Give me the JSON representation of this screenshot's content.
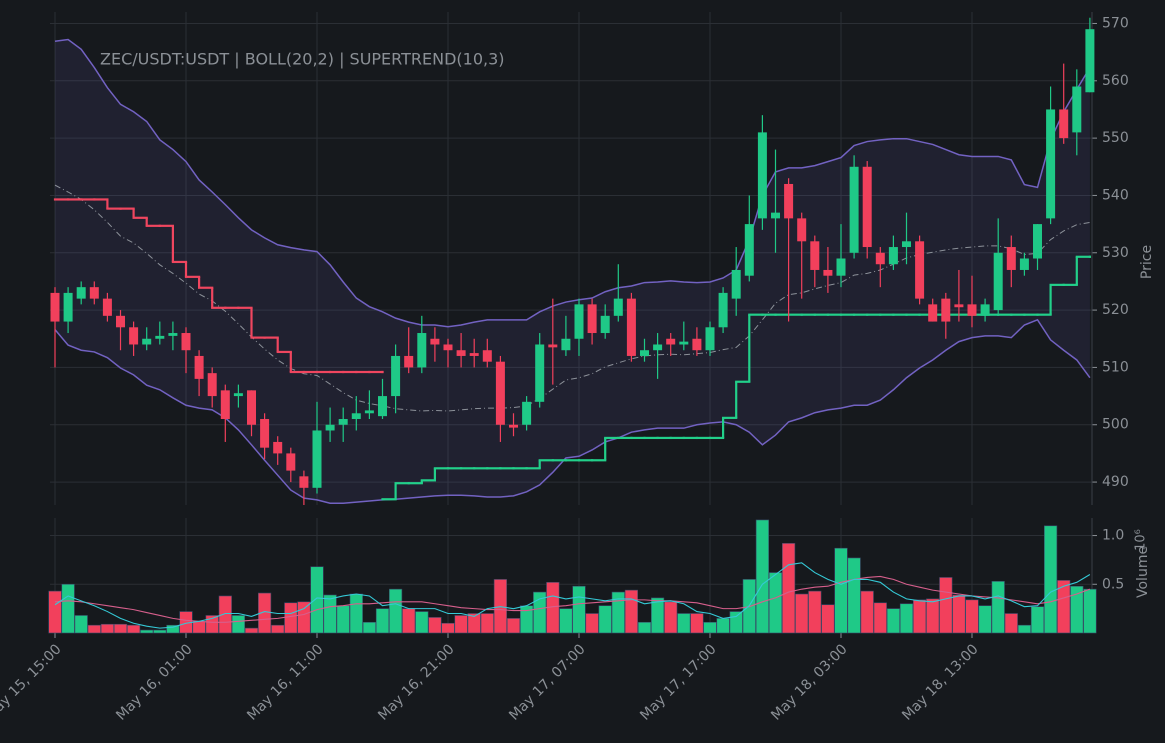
{
  "chart_data": {
    "type": "candlestick",
    "title": "ZEC/USDT:USDT | BOLL(20,2) | SUPERTREND(10,3)",
    "y_axis_label": "Price",
    "categories": [
      "May 15, 15:00",
      null,
      null,
      null,
      null,
      null,
      null,
      null,
      null,
      null,
      "May 16, 01:00",
      null,
      null,
      null,
      null,
      null,
      null,
      null,
      null,
      null,
      "May 16, 11:00",
      null,
      null,
      null,
      null,
      null,
      null,
      null,
      null,
      null,
      "May 16, 21:00",
      null,
      null,
      null,
      null,
      null,
      null,
      null,
      null,
      null,
      "May 17, 07:00",
      null,
      null,
      null,
      null,
      null,
      null,
      null,
      null,
      null,
      "May 17, 17:00",
      null,
      null,
      null,
      null,
      null,
      null,
      null,
      null,
      null,
      "May 18, 03:00",
      null,
      null,
      null,
      null,
      null,
      null,
      null,
      null,
      null,
      "May 18, 13:00",
      null,
      null,
      null,
      null,
      null,
      null,
      null,
      null,
      null
    ],
    "open": [
      523,
      518,
      522,
      524,
      522,
      519,
      517,
      514,
      515,
      515.5,
      516,
      512,
      509,
      506,
      505,
      506,
      501,
      497,
      495,
      491,
      489,
      499,
      500,
      501,
      502,
      501.5,
      505,
      512,
      510,
      515,
      514,
      513,
      512.5,
      513,
      511,
      500,
      500,
      504,
      514,
      513,
      515,
      521,
      516,
      519,
      522,
      512,
      513,
      515,
      514,
      515,
      513,
      517,
      522,
      526,
      536,
      536,
      542,
      536,
      532,
      527,
      526,
      530,
      545,
      530,
      528,
      531,
      532,
      521,
      522,
      521,
      521,
      519,
      520,
      531,
      527,
      529,
      536,
      555,
      551,
      558
    ],
    "high": [
      524,
      524,
      525,
      525,
      523,
      520,
      518,
      517,
      518,
      518,
      517,
      513,
      510,
      507,
      507,
      506,
      502,
      498,
      496,
      492,
      504,
      503,
      503,
      505,
      506,
      508,
      514,
      517,
      519,
      517,
      515,
      516,
      515,
      515,
      512,
      502,
      505,
      516,
      522,
      519,
      522,
      522,
      521,
      528,
      523,
      515,
      516,
      516,
      518,
      517,
      518,
      524,
      531,
      540,
      554,
      548,
      543,
      537,
      533,
      531,
      535,
      547,
      546,
      531,
      533,
      537,
      533,
      522,
      523,
      527,
      526,
      522,
      536,
      533,
      530,
      535,
      559,
      563,
      562,
      571
    ],
    "low": [
      510,
      516,
      521,
      521,
      518,
      513,
      512,
      513,
      514,
      513,
      509,
      505,
      503,
      497,
      503,
      498,
      494,
      493,
      490,
      486,
      488,
      497,
      497,
      499,
      501,
      501,
      502,
      509,
      509,
      511,
      510,
      510,
      510,
      510,
      497,
      498,
      499,
      503,
      507,
      512,
      512,
      514,
      515,
      518,
      511,
      511,
      508,
      512,
      513,
      512,
      512,
      516,
      519,
      525,
      534,
      530,
      518,
      522,
      524,
      523,
      524,
      529,
      529,
      524,
      527,
      528,
      521,
      518,
      515,
      518,
      517,
      518,
      519,
      524,
      526,
      527,
      535,
      549,
      547,
      558
    ],
    "close": [
      518,
      523,
      524,
      522,
      519,
      517,
      514,
      515,
      515.5,
      516,
      513,
      508,
      505,
      501,
      505.5,
      500,
      496,
      495,
      492,
      489,
      499,
      500,
      501,
      502,
      502.5,
      505,
      512,
      510,
      516,
      514,
      513,
      512,
      512,
      511,
      500,
      499.5,
      504,
      514,
      513.5,
      515,
      521,
      516,
      519,
      522,
      512,
      513,
      514,
      514,
      514.5,
      513,
      517,
      523,
      527,
      535,
      551,
      537,
      536,
      532,
      527,
      526,
      529,
      545,
      531,
      528,
      531,
      532,
      522,
      518,
      518,
      520.5,
      519,
      521,
      530,
      527,
      529,
      535,
      555,
      550,
      559,
      569
    ],
    "bb_upper": [
      566.9,
      567.2,
      565.5,
      562.3,
      558.8,
      555.9,
      554.6,
      552.9,
      549.7,
      548,
      545.9,
      542.7,
      540.6,
      538.4,
      536.1,
      534,
      532.6,
      531.4,
      530.9,
      530.5,
      530.2,
      527.9,
      524.9,
      522.1,
      520.6,
      519.7,
      518.6,
      517.9,
      517.4,
      517.4,
      517.1,
      517.4,
      517.9,
      518.3,
      518.3,
      518.3,
      518.3,
      519.7,
      520.7,
      521.4,
      521.8,
      522.1,
      523.2,
      523.9,
      524.2,
      524.8,
      524.9,
      525.1,
      524.9,
      524.8,
      524.9,
      525.6,
      527,
      532.3,
      540,
      544.1,
      544.8,
      544.8,
      545.2,
      545.9,
      546.6,
      548.7,
      549.4,
      549.7,
      549.9,
      549.9,
      549.4,
      548.9,
      548,
      547.1,
      546.8,
      546.8,
      546.8,
      546.2,
      541.9,
      541.4,
      549.7,
      554.6,
      558.5,
      562.3
    ],
    "bb_middle": [
      541.8,
      540.6,
      539.3,
      537.5,
      535.3,
      532.9,
      531.7,
      529.9,
      527.9,
      526.4,
      524.7,
      522.8,
      521.6,
      519.8,
      517.6,
      515.3,
      513.2,
      511.3,
      509.8,
      508.9,
      508.6,
      507.1,
      505.6,
      504.3,
      503.7,
      503.3,
      502.8,
      502.6,
      502.4,
      502.5,
      502.4,
      502.6,
      502.8,
      502.9,
      502.9,
      503,
      503.3,
      504.6,
      506.2,
      507.8,
      508.2,
      508.9,
      510.1,
      510.8,
      511.5,
      512,
      512.2,
      512.3,
      512.2,
      512.4,
      512.6,
      513.1,
      513.5,
      515.5,
      518.3,
      521.2,
      522.7,
      523,
      523.7,
      524.3,
      524.8,
      526.1,
      526.4,
      527,
      528,
      529.1,
      529.7,
      530.1,
      530.5,
      530.8,
      531,
      531.2,
      531.2,
      530.7,
      529.7,
      529.9,
      532.3,
      533.8,
      534.9,
      535.3
    ],
    "bb_lower": [
      516.6,
      513.9,
      513,
      512.7,
      511.7,
      509.9,
      508.7,
      506.9,
      506.1,
      504.7,
      503.4,
      502.9,
      502.6,
      501.2,
      499.1,
      496.5,
      493.8,
      491.2,
      488.6,
      487.2,
      486.9,
      486.3,
      486.3,
      486.5,
      486.7,
      486.9,
      487,
      487.2,
      487.4,
      487.6,
      487.7,
      487.7,
      487.6,
      487.4,
      487.4,
      487.6,
      488.3,
      489.5,
      491.7,
      494.2,
      494.5,
      495.6,
      497,
      497.7,
      498.7,
      499.1,
      499.4,
      499.4,
      499.4,
      500,
      500.3,
      500.5,
      500,
      498.7,
      496.5,
      498.2,
      500.5,
      501.2,
      502.1,
      502.6,
      502.9,
      503.4,
      503.4,
      504.3,
      506.1,
      508.2,
      509.9,
      511.3,
      513,
      514.5,
      515.2,
      515.5,
      515.5,
      515.2,
      517.4,
      518.3,
      514.8,
      513,
      511.3,
      508.2
    ],
    "supertrend_down": [
      539.3,
      539.3,
      539.3,
      539.3,
      537.7,
      537.7,
      536.1,
      534.7,
      534.7,
      528.4,
      525.8,
      523.9,
      520.4,
      520.4,
      520.4,
      515.2,
      515.2,
      512.7,
      509.2,
      509.2,
      509.2,
      509.2,
      509.2,
      509.2,
      509.2,
      509.2,
      null,
      null,
      null,
      null,
      null,
      null,
      null,
      null,
      null,
      null,
      null,
      null,
      null,
      null,
      null,
      null,
      null,
      null,
      null,
      null,
      null,
      null,
      null,
      null,
      null,
      null,
      null,
      null,
      null,
      null,
      null,
      null,
      null,
      null,
      null,
      null,
      null,
      null,
      null,
      null,
      null,
      null,
      null,
      null,
      null,
      null,
      null,
      null,
      null,
      null,
      null,
      null,
      null,
      null
    ],
    "supertrend_up": [
      null,
      null,
      null,
      null,
      null,
      null,
      null,
      null,
      null,
      null,
      null,
      null,
      null,
      null,
      null,
      null,
      null,
      null,
      null,
      null,
      null,
      null,
      null,
      null,
      null,
      487,
      489.8,
      489.8,
      490.3,
      492.4,
      492.4,
      492.4,
      492.4,
      492.4,
      492.4,
      492.4,
      492.4,
      493.8,
      493.8,
      493.8,
      493.8,
      493.8,
      497.7,
      497.7,
      497.7,
      497.7,
      497.7,
      497.7,
      497.7,
      497.7,
      497.7,
      501.2,
      507.5,
      519.2,
      519.2,
      519.2,
      519.2,
      519.2,
      519.2,
      519.2,
      519.2,
      519.2,
      519.2,
      519.2,
      519.2,
      519.2,
      519.2,
      519.2,
      519.2,
      519.2,
      519.2,
      519.2,
      519.2,
      519.2,
      519.2,
      519.2,
      524.4,
      524.4,
      529.3,
      529.3
    ],
    "ylim": [
      486,
      572
    ],
    "yticks": [
      490,
      500,
      510,
      520,
      530,
      540,
      550,
      560,
      570
    ],
    "grid": true,
    "up_color": "#1fc987",
    "down_color": "#f2405c",
    "band_color": "#7262c2",
    "band_fill": "rgba(110,96,190,0.12)",
    "middle_color": "#8c9199",
    "supertrend_up_color": "#22d08a",
    "supertrend_down_color": "#f0465f",
    "volume": {
      "axis_label": "Volume",
      "scale_label": "10⁶",
      "values": [
        0.43,
        0.5,
        0.18,
        0.08,
        0.09,
        0.09,
        0.08,
        0.03,
        0.03,
        0.08,
        0.22,
        0.12,
        0.18,
        0.38,
        0.18,
        0.05,
        0.41,
        0.08,
        0.31,
        0.32,
        0.68,
        0.39,
        0.28,
        0.4,
        0.11,
        0.25,
        0.45,
        0.25,
        0.22,
        0.16,
        0.1,
        0.18,
        0.2,
        0.2,
        0.55,
        0.15,
        0.28,
        0.42,
        0.52,
        0.25,
        0.48,
        0.2,
        0.28,
        0.42,
        0.44,
        0.11,
        0.36,
        0.32,
        0.2,
        0.2,
        0.11,
        0.15,
        0.22,
        0.55,
        1.16,
        0.62,
        0.92,
        0.4,
        0.43,
        0.29,
        0.87,
        0.77,
        0.43,
        0.31,
        0.25,
        0.3,
        0.34,
        0.35,
        0.57,
        0.39,
        0.34,
        0.28,
        0.53,
        0.2,
        0.08,
        0.27,
        1.1,
        0.54,
        0.48,
        0.45
      ],
      "ma_fast": [
        0.29,
        0.38,
        0.33,
        0.28,
        0.22,
        0.15,
        0.1,
        0.07,
        0.05,
        0.06,
        0.1,
        0.12,
        0.15,
        0.2,
        0.2,
        0.17,
        0.22,
        0.2,
        0.2,
        0.25,
        0.36,
        0.35,
        0.38,
        0.4,
        0.38,
        0.28,
        0.3,
        0.25,
        0.25,
        0.25,
        0.2,
        0.2,
        0.17,
        0.25,
        0.27,
        0.25,
        0.28,
        0.35,
        0.38,
        0.35,
        0.37,
        0.35,
        0.33,
        0.35,
        0.35,
        0.3,
        0.32,
        0.33,
        0.3,
        0.22,
        0.2,
        0.15,
        0.17,
        0.28,
        0.5,
        0.6,
        0.7,
        0.72,
        0.62,
        0.55,
        0.5,
        0.55,
        0.55,
        0.52,
        0.42,
        0.35,
        0.33,
        0.32,
        0.35,
        0.38,
        0.38,
        0.35,
        0.38,
        0.33,
        0.27,
        0.28,
        0.42,
        0.48,
        0.52,
        0.6
      ],
      "ma_slow": [
        0.32,
        0.33,
        0.32,
        0.3,
        0.28,
        0.26,
        0.24,
        0.21,
        0.18,
        0.15,
        0.13,
        0.12,
        0.11,
        0.11,
        0.12,
        0.13,
        0.14,
        0.15,
        0.17,
        0.19,
        0.24,
        0.27,
        0.28,
        0.3,
        0.3,
        0.31,
        0.32,
        0.32,
        0.32,
        0.3,
        0.28,
        0.26,
        0.25,
        0.24,
        0.24,
        0.23,
        0.23,
        0.25,
        0.27,
        0.28,
        0.3,
        0.31,
        0.32,
        0.33,
        0.34,
        0.34,
        0.33,
        0.33,
        0.32,
        0.31,
        0.28,
        0.25,
        0.25,
        0.27,
        0.32,
        0.36,
        0.42,
        0.45,
        0.47,
        0.48,
        0.52,
        0.55,
        0.57,
        0.58,
        0.55,
        0.5,
        0.47,
        0.44,
        0.42,
        0.4,
        0.38,
        0.37,
        0.36,
        0.34,
        0.32,
        0.3,
        0.32,
        0.36,
        0.4,
        0.45
      ],
      "ma_fast_color": "#35c9d6",
      "ma_slow_color": "#d65f8c",
      "ylim": [
        0,
        1.18
      ],
      "yticks": [
        0.5,
        {
          "value": 1,
          "label": "1.0"
        }
      ]
    }
  }
}
